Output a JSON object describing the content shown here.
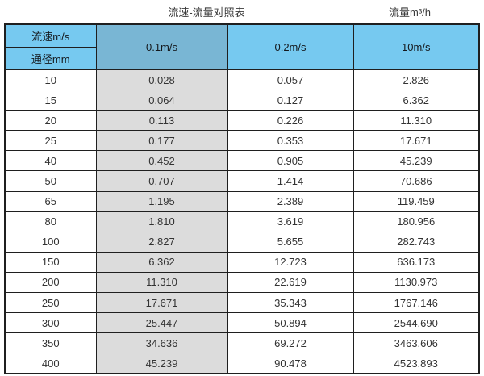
{
  "page": {
    "title_left": "流速-流量对照表",
    "title_right": "流量m³/h"
  },
  "table": {
    "header": {
      "velocity_label": "流速m/s",
      "diameter_label": "通径mm",
      "col_v01": "0.1m/s",
      "col_v02": "0.2m/s",
      "col_v10": "10m/s"
    },
    "rows": [
      {
        "dn": "10",
        "v01": "0.028",
        "v02": "0.057",
        "v10": "2.826"
      },
      {
        "dn": "15",
        "v01": "0.064",
        "v02": "0.127",
        "v10": "6.362"
      },
      {
        "dn": "20",
        "v01": "0.113",
        "v02": "0.226",
        "v10": "11.310"
      },
      {
        "dn": "25",
        "v01": "0.177",
        "v02": "0.353",
        "v10": "17.671"
      },
      {
        "dn": "40",
        "v01": "0.452",
        "v02": "0.905",
        "v10": "45.239"
      },
      {
        "dn": "50",
        "v01": "0.707",
        "v02": "1.414",
        "v10": "70.686"
      },
      {
        "dn": "65",
        "v01": "1.195",
        "v02": "2.389",
        "v10": "119.459"
      },
      {
        "dn": "80",
        "v01": "1.810",
        "v02": "3.619",
        "v10": "180.956"
      },
      {
        "dn": "100",
        "v01": "2.827",
        "v02": "5.655",
        "v10": "282.743"
      },
      {
        "dn": "150",
        "v01": "6.362",
        "v02": "12.723",
        "v10": "636.173"
      },
      {
        "dn": "200",
        "v01": "11.310",
        "v02": "22.619",
        "v10": "1130.973"
      },
      {
        "dn": "250",
        "v01": "17.671",
        "v02": "35.343",
        "v10": "1767.146"
      },
      {
        "dn": "300",
        "v01": "25.447",
        "v02": "50.894",
        "v10": "2544.690"
      },
      {
        "dn": "350",
        "v01": "34.636",
        "v02": "69.272",
        "v10": "3463.606"
      },
      {
        "dn": "400",
        "v01": "45.239",
        "v02": "90.478",
        "v10": "4523.893"
      }
    ]
  },
  "colors": {
    "header_blue": "#76C9F0",
    "header_blue_muted": "#79B6D4",
    "col_gray": "#DCDCDC",
    "border_color": "#1f1f1f"
  }
}
